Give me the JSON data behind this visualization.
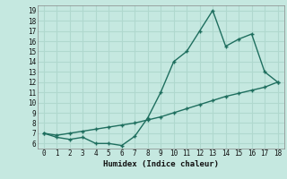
{
  "xlabel": "Humidex (Indice chaleur)",
  "xlim": [
    -0.5,
    18.5
  ],
  "ylim": [
    5.5,
    19.5
  ],
  "xticks": [
    0,
    1,
    2,
    3,
    4,
    5,
    6,
    7,
    8,
    9,
    10,
    11,
    12,
    13,
    14,
    15,
    16,
    17,
    18
  ],
  "yticks": [
    6,
    7,
    8,
    9,
    10,
    11,
    12,
    13,
    14,
    15,
    16,
    17,
    18,
    19
  ],
  "bg_color": "#c5e8e0",
  "grid_color": "#b0d8ce",
  "line_color": "#1e6e5e",
  "line1_x": [
    0,
    1,
    2,
    3,
    4,
    5,
    6,
    7,
    8,
    9,
    10,
    11,
    12,
    13,
    14,
    15,
    16,
    17,
    18
  ],
  "line1_y": [
    7.0,
    6.6,
    6.4,
    6.6,
    6.0,
    6.0,
    5.8,
    6.7,
    8.5,
    11.0,
    14.0,
    15.0,
    17.0,
    19.0,
    15.5,
    16.2,
    16.7,
    13.0,
    12.0
  ],
  "line2_x": [
    0,
    1,
    2,
    3,
    4,
    5,
    6,
    7,
    8,
    9,
    10,
    11,
    12,
    13,
    14,
    15,
    16,
    17,
    18
  ],
  "line2_y": [
    7.0,
    6.8,
    7.0,
    7.2,
    7.4,
    7.6,
    7.8,
    8.0,
    8.3,
    8.6,
    9.0,
    9.4,
    9.8,
    10.2,
    10.6,
    10.9,
    11.2,
    11.5,
    12.0
  ]
}
